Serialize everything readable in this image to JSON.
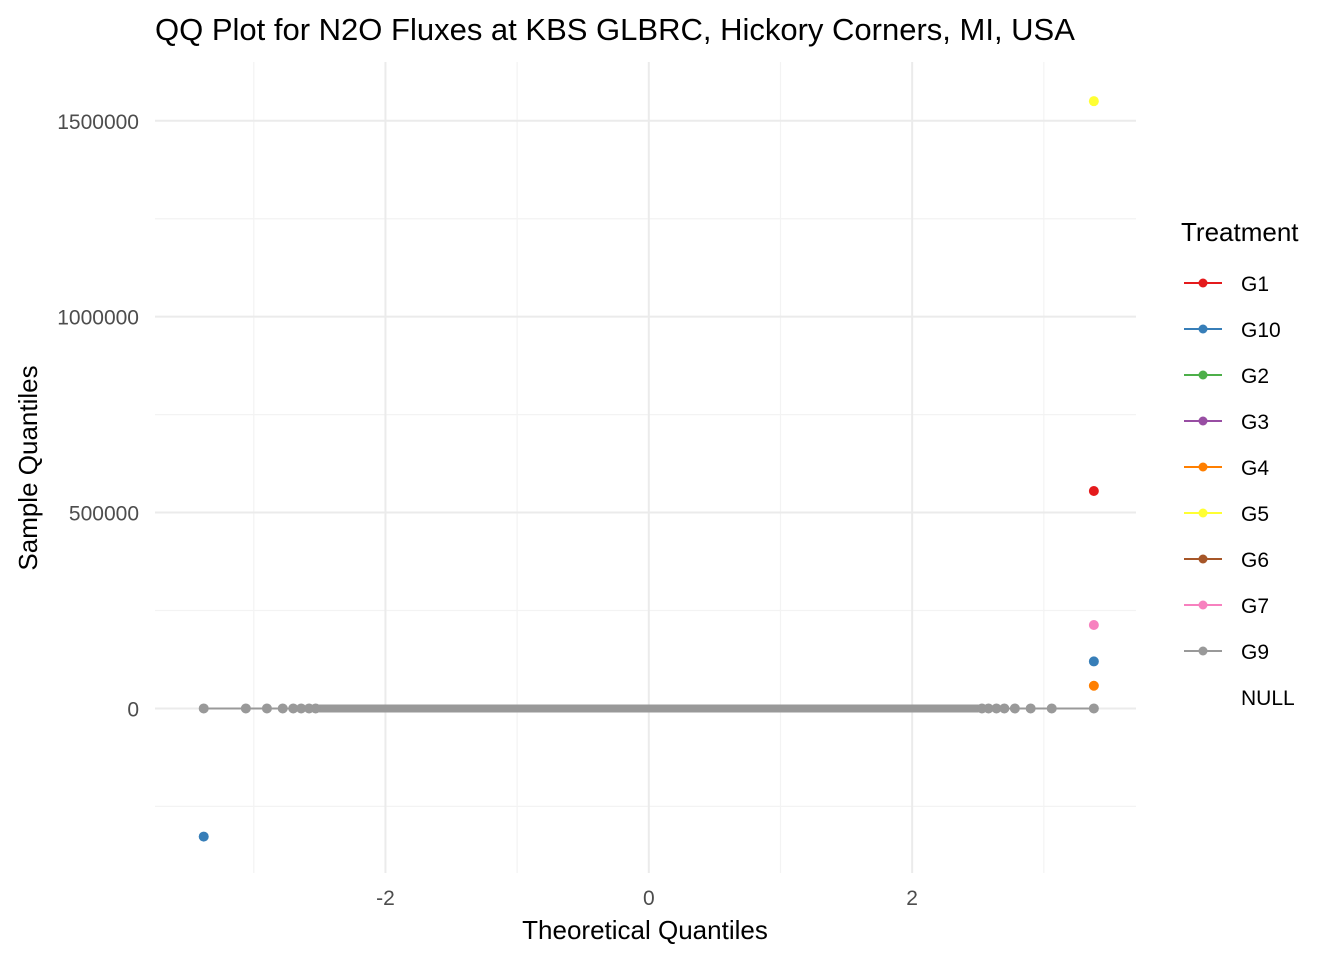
{
  "chart_data": {
    "type": "scatter",
    "title": "QQ Plot for N2O Fluxes at KBS GLBRC, Hickory Corners, MI, USA",
    "xlabel": "Theoretical Quantiles",
    "ylabel": "Sample Quantiles",
    "xlim": [
      -3.75,
      3.7
    ],
    "ylim": [
      -420000,
      1650000
    ],
    "x_ticks": [
      -2,
      0,
      2
    ],
    "x_tick_labels": [
      "-2",
      "0",
      "2"
    ],
    "y_ticks": [
      0,
      500000,
      1000000,
      1500000
    ],
    "y_tick_labels": [
      "0",
      "500000",
      "1000000",
      "1500000"
    ],
    "grid": true,
    "legend_title": "Treatment",
    "legend_position": "right",
    "legend": [
      {
        "label": "G1",
        "color": "#e41a1c"
      },
      {
        "label": "G10",
        "color": "#377eb8"
      },
      {
        "label": "G2",
        "color": "#4daf4a"
      },
      {
        "label": "G3",
        "color": "#984ea3"
      },
      {
        "label": "G4",
        "color": "#ff7f00"
      },
      {
        "label": "G5",
        "color": "#ffff33"
      },
      {
        "label": "G6",
        "color": "#a65628"
      },
      {
        "label": "G7",
        "color": "#f781bf"
      },
      {
        "label": "G9",
        "color": "#999999"
      },
      {
        "label": "NULL",
        "color": ""
      }
    ],
    "series": [
      {
        "name": "G5",
        "color": "#ffff33",
        "points": [
          [
            3.38,
            1550000
          ]
        ]
      },
      {
        "name": "G1",
        "color": "#e41a1c",
        "points": [
          [
            3.38,
            555000
          ]
        ]
      },
      {
        "name": "G7",
        "color": "#f781bf",
        "points": [
          [
            3.38,
            213000
          ]
        ]
      },
      {
        "name": "G10",
        "color": "#377eb8",
        "points": [
          [
            3.38,
            120000
          ],
          [
            -3.38,
            -327000
          ]
        ]
      },
      {
        "name": "G4",
        "color": "#ff7f00",
        "points": [
          [
            3.38,
            58000
          ]
        ]
      },
      {
        "name": "G9",
        "color": "#999999",
        "points": [
          [
            -3.38,
            0
          ],
          [
            -3.06,
            0
          ],
          [
            -2.9,
            0
          ],
          [
            -2.78,
            0
          ],
          [
            -2.7,
            0
          ],
          [
            -2.64,
            0
          ],
          [
            -2.58,
            0
          ],
          [
            -2.53,
            0
          ],
          [
            2.53,
            0
          ],
          [
            2.58,
            0
          ],
          [
            2.64,
            0
          ],
          [
            2.7,
            0
          ],
          [
            2.78,
            0
          ],
          [
            2.9,
            0
          ],
          [
            3.06,
            0
          ],
          [
            3.38,
            0
          ]
        ]
      }
    ],
    "reference_line": {
      "color": "#999999",
      "x": [
        -3.38,
        3.38
      ],
      "y": [
        0,
        0
      ]
    }
  }
}
